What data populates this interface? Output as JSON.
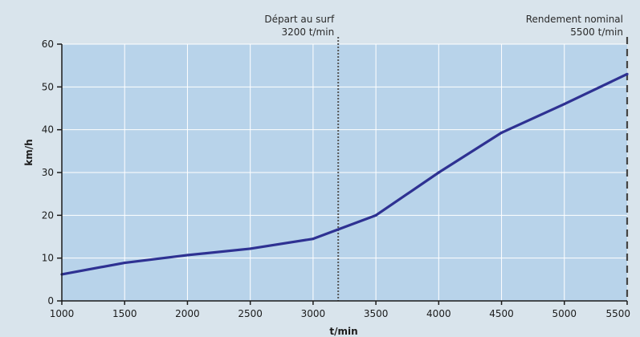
{
  "chart_data": {
    "type": "line",
    "xlabel": "t/min",
    "ylabel": "km/h",
    "xlim": [
      1000,
      5500
    ],
    "ylim": [
      0,
      60
    ],
    "x_ticks": [
      1000,
      1500,
      2000,
      2500,
      3000,
      3500,
      4000,
      4500,
      5000,
      5500
    ],
    "y_ticks": [
      0,
      10,
      20,
      30,
      40,
      50,
      60
    ],
    "grid": true,
    "series": [
      {
        "x": [
          1000,
          1500,
          2000,
          2500,
          3000,
          3500,
          4000,
          4500,
          5000,
          5500
        ],
        "y": [
          6.2,
          8.9,
          10.7,
          12.2,
          14.5,
          20.0,
          30.0,
          39.3,
          46.0,
          53.0
        ],
        "color": "#2e3192"
      }
    ],
    "annotations": [
      {
        "x": 3200,
        "line1": "Départ au surf",
        "line2": "3200 t/min",
        "style": "dotted"
      },
      {
        "x": 5500,
        "line1": "Rendement nominal",
        "line2": "5500 t/min",
        "style": "dashed"
      }
    ],
    "colors": {
      "plot_bg": "#b8d3ea",
      "page_bg": "#d9e4ec",
      "grid": "#ffffff",
      "line": "#2e3192"
    }
  }
}
